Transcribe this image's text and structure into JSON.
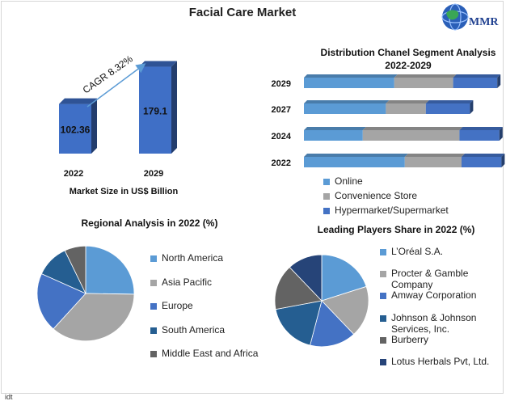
{
  "page": {
    "title": "Facial Care Market",
    "logo_text": "MMR",
    "footer_text": "idt"
  },
  "chart_data": [
    {
      "type": "bar",
      "title": "",
      "categories": [
        "2022",
        "2029"
      ],
      "values": [
        102.36,
        179.1
      ],
      "value_labels": [
        "102.36",
        "179.1"
      ],
      "xlabel": "Market Size in US$ Billion",
      "annotation": "CAGR 8.32%",
      "bar_color": "#3f6fc6"
    },
    {
      "type": "bar",
      "orientation": "horizontal",
      "stacked": true,
      "title_lines": [
        "Distribution Chanel Segment Analysis",
        "2022-2029"
      ],
      "categories": [
        "2029",
        "2027",
        "2024",
        "2022"
      ],
      "series": [
        {
          "name": "Online",
          "color": "#5b9bd5",
          "values": [
            0.43,
            0.39,
            0.28,
            0.48
          ]
        },
        {
          "name": "Convenience Store",
          "color": "#a5a5a5",
          "values": [
            0.28,
            0.19,
            0.46,
            0.27
          ]
        },
        {
          "name": "Hypermarket/Supermarket",
          "color": "#4472c4",
          "values": [
            0.21,
            0.21,
            0.19,
            0.19
          ]
        }
      ]
    },
    {
      "type": "pie",
      "title": "Regional Analysis in 2022 (%)",
      "slices": [
        {
          "label": "North America",
          "value": 25,
          "color": "#5b9bd5"
        },
        {
          "label": "Asia Pacific",
          "value": 36,
          "color": "#a5a5a5"
        },
        {
          "label": "Europe",
          "value": 20,
          "color": "#4472c4"
        },
        {
          "label": "South America",
          "value": 11,
          "color": "#255e91"
        },
        {
          "label": "Middle East and Africa",
          "value": 7,
          "color": "#636363"
        }
      ]
    },
    {
      "type": "pie",
      "title": "Leading Players Share in 2022 (%)",
      "slices": [
        {
          "label": "L’Oréal S.A.",
          "value": 20,
          "color": "#5b9bd5"
        },
        {
          "label": "Procter & Gamble Company",
          "value": 18,
          "color": "#a5a5a5"
        },
        {
          "label": "Amway Corporation",
          "value": 16,
          "color": "#4472c4"
        },
        {
          "label": "Johnson & Johnson Services, Inc.",
          "value": 18,
          "color": "#255e91"
        },
        {
          "label": "Burberry",
          "value": 16,
          "color": "#636363"
        },
        {
          "label": "Lotus Herbals Pvt, Ltd.",
          "value": 12,
          "color": "#264478"
        }
      ]
    }
  ]
}
